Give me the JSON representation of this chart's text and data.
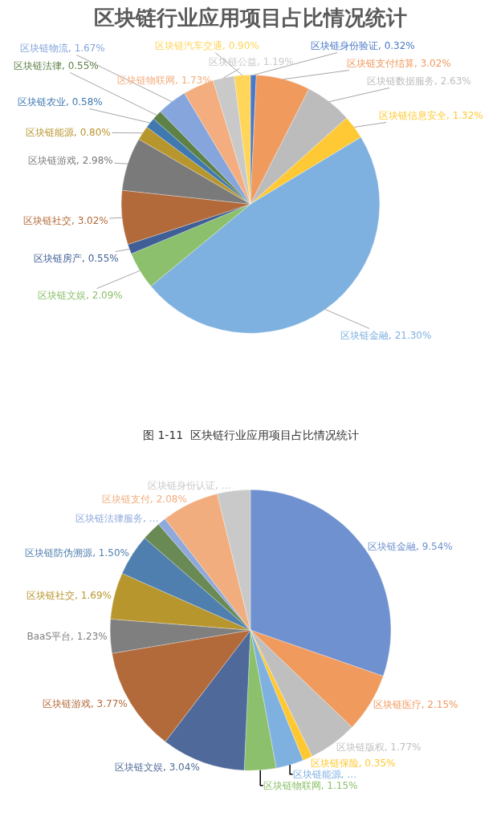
{
  "chart_data": [
    {
      "type": "pie",
      "title": "区块链行业应用项目占比情况统计",
      "annotations": [
        "图 1-11  区块链行业应用项目占比情况统计"
      ],
      "categories": [
        "区块链身份验证",
        "区块链支付结算",
        "区块链数据服务",
        "区块链信息安全",
        "区块链金融",
        "区块链文娱",
        "区块链房产",
        "区块链社交",
        "区块链游戏",
        "区块链能源",
        "区块链农业",
        "区块链法律",
        "区块链物流",
        "区块链物联网",
        "区块链公益",
        "区块链汽车交通"
      ],
      "values": [
        0.32,
        3.02,
        2.63,
        1.32,
        21.3,
        2.09,
        0.55,
        3.02,
        2.98,
        0.8,
        0.58,
        0.55,
        1.67,
        1.73,
        1.19,
        0.9
      ],
      "value_labels": [
        "0.32%",
        "3.02%",
        "2.63%",
        "1.32%",
        "21.30%",
        "2.09%",
        "0.55%",
        "3.02%",
        "2.98%",
        "0.80%",
        "0.58%",
        "0.55%",
        "1.67%",
        "1.73%",
        "1.19%",
        "0.90%"
      ],
      "colors": [
        "#4a78c8",
        "#f09a5e",
        "#bcbcbc",
        "#ffc935",
        "#7fb1e0",
        "#8cc06c",
        "#3f5f96",
        "#b36a3a",
        "#7a7a7a",
        "#b8962e",
        "#3f79b0",
        "#5d8146",
        "#85a5dc",
        "#f4ad7e",
        "#c9c9c9",
        "#ffd55a"
      ]
    },
    {
      "type": "pie",
      "categories": [
        "区块链金融",
        "区块链医疗",
        "区块链版权",
        "区块链保险",
        "区块链能源",
        "区块链物联网",
        "区块链文娱",
        "区块链游戏",
        "BaaS平台",
        "区块链社交",
        "区块链防伪溯源",
        null,
        "区块链法律服务",
        "区块链支付",
        "区块链身份认证"
      ],
      "values": [
        9.54,
        2.15,
        1.77,
        0.35,
        1.0,
        1.15,
        3.04,
        3.77,
        1.23,
        1.69,
        1.5,
        0.7,
        0.3,
        2.08,
        1.2
      ],
      "value_labels": [
        "9.54%",
        "2.15%",
        "1.77%",
        "0.35%",
        "…",
        "1.15%",
        "3.04%",
        "3.77%",
        "1.23%",
        "1.69%",
        "1.50%",
        null,
        "…",
        "2.08%",
        "…"
      ],
      "colors": [
        "#6f91d0",
        "#f09a5e",
        "#bfbfbf",
        "#ffc830",
        "#7fb1e0",
        "#8cc06c",
        "#4f6a9a",
        "#b36a3a",
        "#7f7f7f",
        "#b8962e",
        "#4f7fae",
        "#6a8a55",
        "#8fa9dc",
        "#f2ad7e",
        "#c9c9c9"
      ]
    }
  ]
}
